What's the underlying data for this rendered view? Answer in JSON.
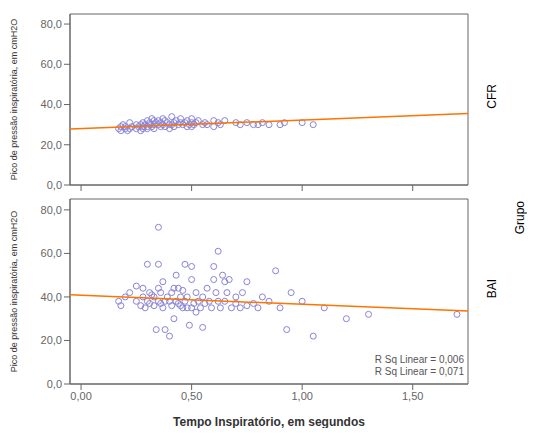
{
  "chart_data": [
    {
      "type": "scatter",
      "ylabel": "Pico de pressão inspiratória, em cmH2O",
      "annotations": [
        "CFR"
      ],
      "xlim": [
        -0.05,
        1.75
      ],
      "xticks": [
        {
          "value": 0.0,
          "label": "0,00"
        },
        {
          "value": 0.5,
          "label": "0,50"
        },
        {
          "value": 1.0,
          "label": "1,00"
        },
        {
          "value": 1.5,
          "label": "1,50"
        }
      ],
      "ylim": [
        0.0,
        85.0
      ],
      "yticks": [
        {
          "value": 0.0,
          "label": "0,0"
        },
        {
          "value": 20.0,
          "label": "20,0"
        },
        {
          "value": 40.0,
          "label": "40,0"
        },
        {
          "value": 60.0,
          "label": "60,0"
        },
        {
          "value": 80.0,
          "label": "80,0"
        }
      ],
      "tick_labels": "y",
      "series": [
        {
          "type": "scatter",
          "marker": "o",
          "x": [
            0.17,
            0.18,
            0.18,
            0.19,
            0.2,
            0.2,
            0.21,
            0.22,
            0.22,
            0.23,
            0.25,
            0.25,
            0.26,
            0.27,
            0.27,
            0.28,
            0.28,
            0.28,
            0.29,
            0.3,
            0.3,
            0.3,
            0.31,
            0.31,
            0.32,
            0.32,
            0.33,
            0.33,
            0.33,
            0.34,
            0.35,
            0.35,
            0.36,
            0.36,
            0.37,
            0.37,
            0.38,
            0.38,
            0.39,
            0.4,
            0.4,
            0.41,
            0.41,
            0.42,
            0.42,
            0.43,
            0.44,
            0.45,
            0.45,
            0.46,
            0.47,
            0.48,
            0.48,
            0.49,
            0.5,
            0.5,
            0.5,
            0.51,
            0.52,
            0.53,
            0.55,
            0.56,
            0.57,
            0.6,
            0.6,
            0.62,
            0.63,
            0.65,
            0.7,
            0.72,
            0.75,
            0.78,
            0.8,
            0.82,
            0.85,
            0.9,
            0.92,
            1.0,
            1.05
          ],
          "values": [
            28,
            27,
            29,
            30,
            28,
            29,
            27,
            28,
            31,
            29,
            28,
            30,
            29,
            27,
            30,
            29,
            28,
            31,
            30,
            29,
            28,
            32,
            31,
            30,
            29,
            33,
            32,
            30,
            28,
            31,
            30,
            32,
            29,
            31,
            30,
            33,
            29,
            32,
            31,
            30,
            28,
            34,
            30,
            31,
            29,
            32,
            30,
            33,
            31,
            30,
            31,
            32,
            29,
            30,
            31,
            29,
            33,
            30,
            31,
            32,
            30,
            31,
            30,
            29,
            32,
            31,
            30,
            32,
            31,
            30,
            31,
            30,
            30,
            31,
            30,
            30,
            31,
            31,
            30
          ]
        },
        {
          "type": "line",
          "line_style": "solid",
          "x": [
            -0.05,
            1.75
          ],
          "values": [
            27.8,
            35.5
          ]
        }
      ]
    },
    {
      "type": "scatter",
      "xlabel": "Tempo Inspiratório, em segundos",
      "ylabel": "Pico de pressão inspiratória, em cmH2O",
      "annotations": [
        "BAI",
        "R Sq Linear = 0,006",
        "R Sq Linear = 0,071"
      ],
      "xlim": [
        -0.05,
        1.75
      ],
      "xticks": [
        {
          "value": 0.0,
          "label": "0,00"
        },
        {
          "value": 0.5,
          "label": "0,50"
        },
        {
          "value": 1.0,
          "label": "1,00"
        },
        {
          "value": 1.5,
          "label": "1,50"
        }
      ],
      "ylim": [
        0.0,
        85.0
      ],
      "yticks": [
        {
          "value": 0.0,
          "label": "0,0"
        },
        {
          "value": 20.0,
          "label": "20,0"
        },
        {
          "value": 40.0,
          "label": "40,0"
        },
        {
          "value": 60.0,
          "label": "60,0"
        },
        {
          "value": 80.0,
          "label": "80,0"
        }
      ],
      "series": [
        {
          "type": "scatter",
          "marker": "o",
          "x": [
            0.17,
            0.18,
            0.2,
            0.22,
            0.25,
            0.25,
            0.27,
            0.28,
            0.28,
            0.29,
            0.3,
            0.3,
            0.31,
            0.31,
            0.32,
            0.33,
            0.33,
            0.34,
            0.35,
            0.35,
            0.35,
            0.36,
            0.36,
            0.37,
            0.37,
            0.38,
            0.38,
            0.39,
            0.4,
            0.4,
            0.41,
            0.41,
            0.42,
            0.42,
            0.43,
            0.43,
            0.44,
            0.44,
            0.45,
            0.45,
            0.46,
            0.46,
            0.47,
            0.47,
            0.48,
            0.48,
            0.49,
            0.5,
            0.5,
            0.5,
            0.51,
            0.52,
            0.52,
            0.53,
            0.54,
            0.55,
            0.55,
            0.56,
            0.57,
            0.58,
            0.59,
            0.6,
            0.6,
            0.61,
            0.62,
            0.63,
            0.64,
            0.65,
            0.65,
            0.66,
            0.67,
            0.68,
            0.7,
            0.7,
            0.72,
            0.73,
            0.75,
            0.75,
            0.78,
            0.8,
            0.82,
            0.85,
            0.88,
            0.9,
            0.93,
            0.95,
            1.0,
            1.05,
            1.1,
            1.2,
            1.3,
            1.7,
            0.35,
            0.62
          ],
          "values": [
            38,
            36,
            40,
            42,
            45,
            38,
            36,
            40,
            44,
            35,
            38,
            55,
            42,
            37,
            41,
            40,
            36,
            25,
            38,
            44,
            55,
            37,
            42,
            35,
            47,
            38,
            25,
            40,
            38,
            22,
            42,
            36,
            44,
            30,
            38,
            50,
            37,
            44,
            36,
            40,
            35,
            43,
            38,
            55,
            40,
            35,
            27,
            35,
            54,
            48,
            37,
            42,
            33,
            38,
            35,
            40,
            26,
            37,
            44,
            38,
            35,
            54,
            48,
            42,
            38,
            35,
            50,
            47,
            38,
            42,
            48,
            35,
            37,
            40,
            35,
            42,
            47,
            36,
            37,
            35,
            40,
            38,
            52,
            35,
            25,
            42,
            38,
            22,
            35,
            30,
            32,
            32,
            72,
            61
          ]
        },
        {
          "type": "line",
          "line_style": "solid",
          "x": [
            -0.05,
            1.75
          ],
          "values": [
            41.0,
            33.5
          ]
        }
      ]
    }
  ],
  "annotations": [
    "Grupo"
  ]
}
